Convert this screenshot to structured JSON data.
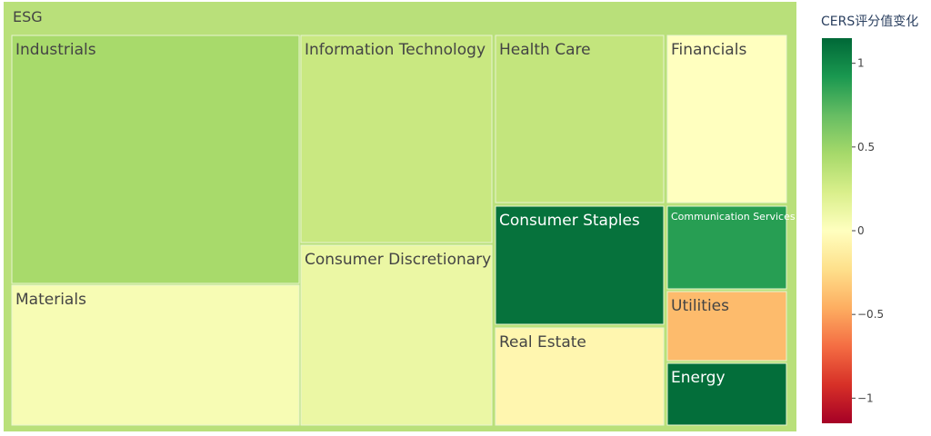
{
  "chart_data": {
    "type": "treemap",
    "root": "ESG",
    "colorbar": {
      "title": "CERS评分值变化",
      "ticks": [
        "1",
        "0.5",
        "0",
        "−0.5",
        "−1"
      ],
      "tick_values": [
        1,
        0.5,
        0,
        -0.5,
        -1
      ],
      "range": [
        -1.15,
        1.15
      ],
      "colors": [
        "#006837",
        "#1a9850",
        "#66bd63",
        "#a6d96a",
        "#d9ef8b",
        "#ffffbf",
        "#fee08b",
        "#fdae61",
        "#f46d43",
        "#d73027",
        "#a50026"
      ]
    },
    "sectors": [
      {
        "name": "Industrials",
        "size": 20.0,
        "value": 0.45
      },
      {
        "name": "Materials",
        "size": 11.0,
        "value": 0.05
      },
      {
        "name": "Information Technology",
        "size": 10.9,
        "value": 0.3
      },
      {
        "name": "Consumer Discretionary",
        "size": 10.9,
        "value": 0.12
      },
      {
        "name": "Health Care",
        "size": 9.1,
        "value": 0.33
      },
      {
        "name": "Consumer Staples",
        "size": 6.8,
        "value": 1.1
      },
      {
        "name": "Real Estate",
        "size": 5.7,
        "value": -0.07
      },
      {
        "name": "Financials",
        "size": 6.0,
        "value": 0.0
      },
      {
        "name": "Communication Services",
        "size": 3.3,
        "value": 0.88
      },
      {
        "name": "Utilities",
        "size": 2.6,
        "value": -0.4
      },
      {
        "name": "Energy",
        "size": 2.4,
        "value": 1.12
      }
    ]
  }
}
